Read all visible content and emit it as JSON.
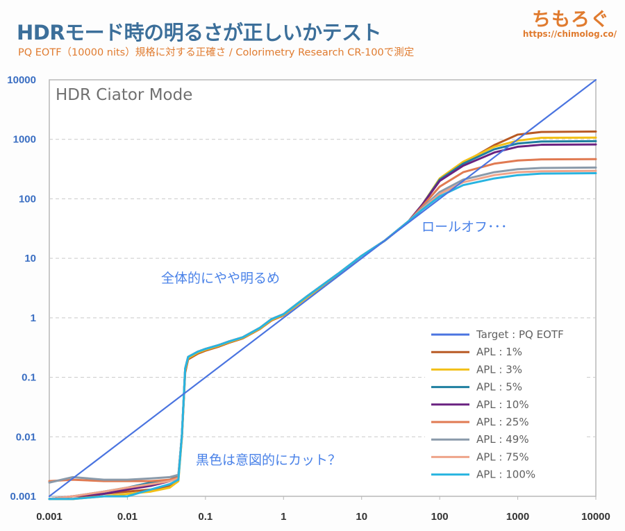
{
  "header": {
    "title": "HDRモード時の明るさが正しいかテスト",
    "subtitle": "PQ EOTF（10000 nits）規格に対する正確さ / Colorimetry Research CR-100で測定",
    "logo": "ちもろぐ",
    "logo_url": "https://chimolog.co/"
  },
  "chart_data": {
    "type": "line",
    "xscale": "log",
    "yscale": "log",
    "xlim": [
      0.001,
      10000
    ],
    "ylim": [
      0.001,
      10000
    ],
    "x_ticks": [
      "0.001",
      "0.01",
      "0.1",
      "1",
      "10",
      "100",
      "1000",
      "10000"
    ],
    "y_ticks": [
      "0.001",
      "0.01",
      "0.1",
      "1",
      "10",
      "100",
      "1000",
      "10000"
    ],
    "grid": "horizontal dashed",
    "legend_position": "bottom-right",
    "mode_label": "HDR Ciator Mode",
    "annotations": [
      "全体的にやや明るめ",
      "ロールオフ･･･",
      "黒色は意図的にカット？"
    ],
    "series": [
      {
        "name": "Target : PQ EOTF",
        "color": "#4a74e0",
        "points": [
          [
            0.001,
            0.001
          ],
          [
            10000,
            10000
          ]
        ]
      },
      {
        "name": "APL : 1%",
        "color": "#b85a24",
        "points": [
          [
            0.001,
            0.0009
          ],
          [
            0.002,
            0.0009
          ],
          [
            0.005,
            0.0011
          ],
          [
            0.01,
            0.0012
          ],
          [
            0.02,
            0.0013
          ],
          [
            0.035,
            0.0015
          ],
          [
            0.045,
            0.002
          ],
          [
            0.05,
            0.01
          ],
          [
            0.055,
            0.12
          ],
          [
            0.06,
            0.2
          ],
          [
            0.08,
            0.25
          ],
          [
            0.1,
            0.28
          ],
          [
            0.15,
            0.33
          ],
          [
            0.2,
            0.38
          ],
          [
            0.3,
            0.45
          ],
          [
            0.5,
            0.65
          ],
          [
            0.7,
            0.9
          ],
          [
            1,
            1.1
          ],
          [
            2,
            2.2
          ],
          [
            5,
            5.3
          ],
          [
            10,
            11
          ],
          [
            20,
            20
          ],
          [
            40,
            42
          ],
          [
            60,
            80
          ],
          [
            100,
            200
          ],
          [
            200,
            400
          ],
          [
            500,
            800
          ],
          [
            1000,
            1200
          ],
          [
            2000,
            1330
          ],
          [
            10000,
            1350
          ]
        ]
      },
      {
        "name": "APL : 3%",
        "color": "#f2c018",
        "points": [
          [
            0.001,
            0.0009
          ],
          [
            0.002,
            0.0009
          ],
          [
            0.005,
            0.001
          ],
          [
            0.01,
            0.0011
          ],
          [
            0.02,
            0.0012
          ],
          [
            0.035,
            0.0014
          ],
          [
            0.045,
            0.0018
          ],
          [
            0.05,
            0.01
          ],
          [
            0.055,
            0.13
          ],
          [
            0.06,
            0.21
          ],
          [
            0.08,
            0.26
          ],
          [
            0.1,
            0.29
          ],
          [
            0.15,
            0.34
          ],
          [
            0.2,
            0.39
          ],
          [
            0.3,
            0.46
          ],
          [
            0.5,
            0.66
          ],
          [
            0.7,
            0.92
          ],
          [
            1,
            1.12
          ],
          [
            2,
            2.2
          ],
          [
            5,
            5.4
          ],
          [
            10,
            11
          ],
          [
            20,
            20
          ],
          [
            40,
            42
          ],
          [
            60,
            80
          ],
          [
            100,
            220
          ],
          [
            200,
            420
          ],
          [
            500,
            750
          ],
          [
            1000,
            950
          ],
          [
            2000,
            1060
          ],
          [
            10000,
            1070
          ]
        ]
      },
      {
        "name": "APL : 5%",
        "color": "#1f7fa0",
        "points": [
          [
            0.001,
            0.0009
          ],
          [
            0.002,
            0.001
          ],
          [
            0.005,
            0.0012
          ],
          [
            0.01,
            0.0014
          ],
          [
            0.02,
            0.0017
          ],
          [
            0.035,
            0.0019
          ],
          [
            0.045,
            0.0022
          ],
          [
            0.05,
            0.011
          ],
          [
            0.055,
            0.14
          ],
          [
            0.06,
            0.22
          ],
          [
            0.08,
            0.27
          ],
          [
            0.1,
            0.3
          ],
          [
            0.15,
            0.35
          ],
          [
            0.2,
            0.4
          ],
          [
            0.3,
            0.47
          ],
          [
            0.5,
            0.68
          ],
          [
            0.7,
            0.95
          ],
          [
            1,
            1.15
          ],
          [
            2,
            2.3
          ],
          [
            5,
            5.5
          ],
          [
            10,
            11
          ],
          [
            20,
            20
          ],
          [
            40,
            42
          ],
          [
            60,
            80
          ],
          [
            100,
            210
          ],
          [
            200,
            390
          ],
          [
            500,
            680
          ],
          [
            1000,
            850
          ],
          [
            2000,
            920
          ],
          [
            10000,
            930
          ]
        ]
      },
      {
        "name": "APL : 10%",
        "color": "#6a2280",
        "points": [
          [
            0.001,
            0.0009
          ],
          [
            0.002,
            0.001
          ],
          [
            0.005,
            0.0011
          ],
          [
            0.01,
            0.0013
          ],
          [
            0.02,
            0.0015
          ],
          [
            0.035,
            0.0018
          ],
          [
            0.045,
            0.0021
          ],
          [
            0.05,
            0.011
          ],
          [
            0.055,
            0.14
          ],
          [
            0.06,
            0.22
          ],
          [
            0.08,
            0.27
          ],
          [
            0.1,
            0.3
          ],
          [
            0.15,
            0.35
          ],
          [
            0.2,
            0.4
          ],
          [
            0.3,
            0.47
          ],
          [
            0.5,
            0.68
          ],
          [
            0.7,
            0.95
          ],
          [
            1,
            1.15
          ],
          [
            2,
            2.3
          ],
          [
            5,
            5.5
          ],
          [
            10,
            11
          ],
          [
            20,
            20
          ],
          [
            40,
            42
          ],
          [
            60,
            80
          ],
          [
            100,
            200
          ],
          [
            200,
            360
          ],
          [
            500,
            600
          ],
          [
            1000,
            750
          ],
          [
            2000,
            810
          ],
          [
            10000,
            820
          ]
        ]
      },
      {
        "name": "APL : 25%",
        "color": "#e07a52",
        "points": [
          [
            0.001,
            0.0018
          ],
          [
            0.002,
            0.0019
          ],
          [
            0.005,
            0.0018
          ],
          [
            0.01,
            0.0018
          ],
          [
            0.02,
            0.0018
          ],
          [
            0.035,
            0.0019
          ],
          [
            0.045,
            0.0021
          ],
          [
            0.05,
            0.011
          ],
          [
            0.055,
            0.14
          ],
          [
            0.06,
            0.22
          ],
          [
            0.08,
            0.27
          ],
          [
            0.1,
            0.3
          ],
          [
            0.15,
            0.35
          ],
          [
            0.2,
            0.4
          ],
          [
            0.3,
            0.47
          ],
          [
            0.5,
            0.68
          ],
          [
            0.7,
            0.95
          ],
          [
            1,
            1.15
          ],
          [
            2,
            2.3
          ],
          [
            5,
            5.5
          ],
          [
            10,
            11
          ],
          [
            20,
            20
          ],
          [
            40,
            42
          ],
          [
            60,
            75
          ],
          [
            100,
            160
          ],
          [
            200,
            280
          ],
          [
            500,
            390
          ],
          [
            1000,
            440
          ],
          [
            2000,
            460
          ],
          [
            10000,
            465
          ]
        ]
      },
      {
        "name": "APL : 49%",
        "color": "#8a9aaa",
        "points": [
          [
            0.001,
            0.0017
          ],
          [
            0.002,
            0.0021
          ],
          [
            0.005,
            0.0019
          ],
          [
            0.01,
            0.0019
          ],
          [
            0.02,
            0.002
          ],
          [
            0.035,
            0.0021
          ],
          [
            0.045,
            0.0023
          ],
          [
            0.05,
            0.011
          ],
          [
            0.055,
            0.14
          ],
          [
            0.06,
            0.22
          ],
          [
            0.08,
            0.27
          ],
          [
            0.1,
            0.3
          ],
          [
            0.15,
            0.35
          ],
          [
            0.2,
            0.4
          ],
          [
            0.3,
            0.47
          ],
          [
            0.5,
            0.68
          ],
          [
            0.7,
            0.95
          ],
          [
            1,
            1.15
          ],
          [
            2,
            2.3
          ],
          [
            5,
            5.5
          ],
          [
            10,
            11
          ],
          [
            20,
            20
          ],
          [
            40,
            42
          ],
          [
            60,
            70
          ],
          [
            100,
            130
          ],
          [
            200,
            210
          ],
          [
            500,
            280
          ],
          [
            1000,
            315
          ],
          [
            2000,
            330
          ],
          [
            10000,
            335
          ]
        ]
      },
      {
        "name": "APL : 75%",
        "color": "#eea48a",
        "points": [
          [
            0.001,
            0.0009
          ],
          [
            0.002,
            0.001
          ],
          [
            0.005,
            0.0012
          ],
          [
            0.01,
            0.0014
          ],
          [
            0.02,
            0.0016
          ],
          [
            0.035,
            0.0018
          ],
          [
            0.045,
            0.002
          ],
          [
            0.05,
            0.011
          ],
          [
            0.055,
            0.14
          ],
          [
            0.06,
            0.22
          ],
          [
            0.08,
            0.27
          ],
          [
            0.1,
            0.3
          ],
          [
            0.15,
            0.35
          ],
          [
            0.2,
            0.4
          ],
          [
            0.3,
            0.47
          ],
          [
            0.5,
            0.68
          ],
          [
            0.7,
            0.95
          ],
          [
            1,
            1.15
          ],
          [
            2,
            2.3
          ],
          [
            5,
            5.5
          ],
          [
            10,
            11
          ],
          [
            20,
            20
          ],
          [
            40,
            42
          ],
          [
            60,
            68
          ],
          [
            100,
            120
          ],
          [
            200,
            190
          ],
          [
            500,
            250
          ],
          [
            1000,
            280
          ],
          [
            2000,
            290
          ],
          [
            10000,
            295
          ]
        ]
      },
      {
        "name": "APL : 100%",
        "color": "#28b4e0",
        "points": [
          [
            0.001,
            0.0009
          ],
          [
            0.002,
            0.0009
          ],
          [
            0.005,
            0.001
          ],
          [
            0.01,
            0.001
          ],
          [
            0.02,
            0.0013
          ],
          [
            0.035,
            0.0016
          ],
          [
            0.045,
            0.0019
          ],
          [
            0.05,
            0.011
          ],
          [
            0.055,
            0.14
          ],
          [
            0.06,
            0.22
          ],
          [
            0.08,
            0.27
          ],
          [
            0.1,
            0.3
          ],
          [
            0.15,
            0.35
          ],
          [
            0.2,
            0.4
          ],
          [
            0.3,
            0.47
          ],
          [
            0.5,
            0.68
          ],
          [
            0.7,
            0.95
          ],
          [
            1,
            1.15
          ],
          [
            2,
            2.3
          ],
          [
            5,
            5.5
          ],
          [
            10,
            11
          ],
          [
            20,
            20
          ],
          [
            40,
            42
          ],
          [
            60,
            66
          ],
          [
            100,
            110
          ],
          [
            200,
            170
          ],
          [
            500,
            220
          ],
          [
            1000,
            250
          ],
          [
            2000,
            265
          ],
          [
            10000,
            270
          ]
        ]
      }
    ]
  }
}
